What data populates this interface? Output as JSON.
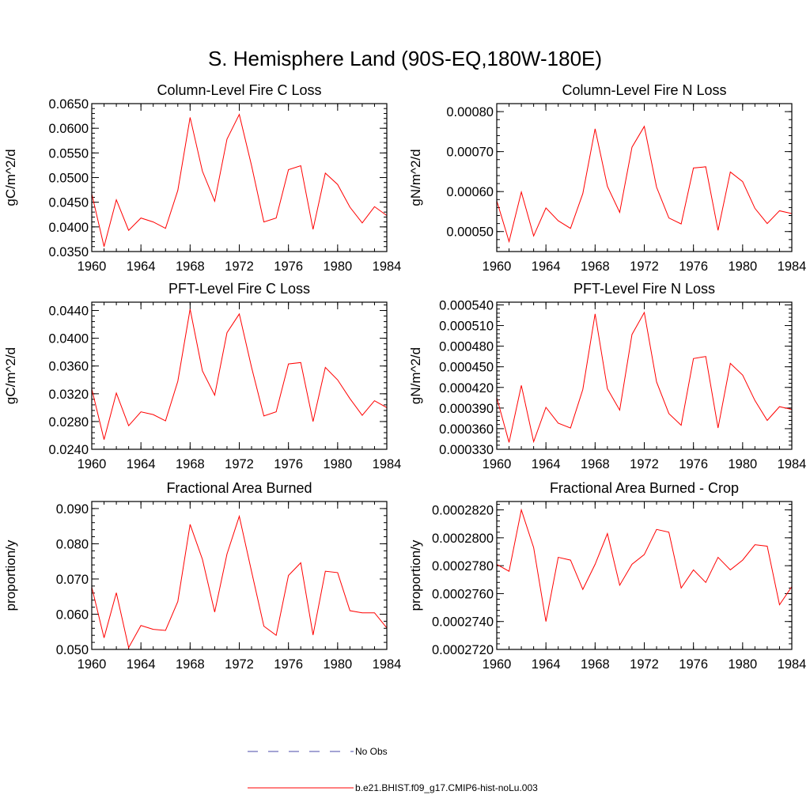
{
  "figure": {
    "title": "S. Hemisphere Land (90S-EQ,180W-180E)"
  },
  "legend": {
    "entries": [
      {
        "label": "No Obs",
        "color": "#4a4aaa",
        "style": "dashed"
      },
      {
        "label": "b.e21.BHIST.f09_g17.CMIP6-hist-noLu.003",
        "color": "#ff0000",
        "style": "solid"
      }
    ]
  },
  "chart_data": [
    {
      "type": "line",
      "title": "Column-Level Fire C Loss",
      "xlabel": "",
      "ylabel": "gC/m^2/d",
      "xlim": [
        1960,
        1984
      ],
      "ylim": [
        0.035,
        0.065
      ],
      "xticks": [
        "1960",
        "1964",
        "1968",
        "1972",
        "1976",
        "1980",
        "1984"
      ],
      "yticks": [
        "0.0350",
        "0.0400",
        "0.0450",
        "0.0500",
        "0.0550",
        "0.0600",
        "0.0650"
      ],
      "x": [
        1960,
        1961,
        1962,
        1963,
        1964,
        1965,
        1966,
        1967,
        1968,
        1969,
        1970,
        1971,
        1972,
        1973,
        1974,
        1975,
        1976,
        1977,
        1978,
        1979,
        1980,
        1981,
        1982,
        1983,
        1984
      ],
      "series": [
        {
          "color": "#ff0000",
          "values": [
            0.0467,
            0.036,
            0.0455,
            0.0393,
            0.0418,
            0.041,
            0.0397,
            0.0474,
            0.0622,
            0.0513,
            0.0452,
            0.0578,
            0.0628,
            0.0524,
            0.041,
            0.0418,
            0.0516,
            0.0524,
            0.0395,
            0.0509,
            0.0486,
            0.044,
            0.0408,
            0.0441,
            0.0423
          ]
        }
      ]
    },
    {
      "type": "line",
      "title": "Column-Level Fire N Loss",
      "xlabel": "",
      "ylabel": "gN/m^2/d",
      "xlim": [
        1960,
        1984
      ],
      "ylim": [
        0.00045,
        0.00082
      ],
      "xticks": [
        "1960",
        "1964",
        "1968",
        "1972",
        "1976",
        "1980",
        "1984"
      ],
      "yticks": [
        "0.00050",
        "0.00060",
        "0.00070",
        "0.00080"
      ],
      "x": [
        1960,
        1961,
        1962,
        1963,
        1964,
        1965,
        1966,
        1967,
        1968,
        1969,
        1970,
        1971,
        1972,
        1973,
        1974,
        1975,
        1976,
        1977,
        1978,
        1979,
        1980,
        1981,
        1982,
        1983,
        1984
      ],
      "series": [
        {
          "color": "#ff0000",
          "values": [
            0.000577,
            0.000475,
            0.000599,
            0.000489,
            0.000559,
            0.000527,
            0.000508,
            0.000595,
            0.000757,
            0.000613,
            0.000548,
            0.000711,
            0.000763,
            0.000611,
            0.000534,
            0.000519,
            0.000659,
            0.000662,
            0.000503,
            0.000649,
            0.000625,
            0.000558,
            0.00052,
            0.000552,
            0.000545
          ]
        }
      ]
    },
    {
      "type": "line",
      "title": "PFT-Level Fire C Loss",
      "xlabel": "",
      "ylabel": "gC/m^2/d",
      "xlim": [
        1960,
        1984
      ],
      "ylim": [
        0.024,
        0.0452
      ],
      "xticks": [
        "1960",
        "1964",
        "1968",
        "1972",
        "1976",
        "1980",
        "1984"
      ],
      "yticks": [
        "0.0240",
        "0.0280",
        "0.0320",
        "0.0360",
        "0.0400",
        "0.0440"
      ],
      "x": [
        1960,
        1961,
        1962,
        1963,
        1964,
        1965,
        1966,
        1967,
        1968,
        1969,
        1970,
        1971,
        1972,
        1973,
        1974,
        1975,
        1976,
        1977,
        1978,
        1979,
        1980,
        1981,
        1982,
        1983,
        1984
      ],
      "series": [
        {
          "color": "#ff0000",
          "values": [
            0.0327,
            0.0254,
            0.0321,
            0.0274,
            0.0294,
            0.029,
            0.0281,
            0.0338,
            0.0442,
            0.0353,
            0.0318,
            0.0408,
            0.0435,
            0.0358,
            0.0288,
            0.0294,
            0.0363,
            0.0365,
            0.028,
            0.0358,
            0.034,
            0.0313,
            0.0289,
            0.031,
            0.03
          ]
        }
      ]
    },
    {
      "type": "line",
      "title": "PFT-Level Fire N Loss",
      "xlabel": "",
      "ylabel": "gN/m^2/d",
      "xlim": [
        1960,
        1984
      ],
      "ylim": [
        0.00033,
        0.000544
      ],
      "xticks": [
        "1960",
        "1964",
        "1968",
        "1972",
        "1976",
        "1980",
        "1984"
      ],
      "yticks": [
        "0.000330",
        "0.000360",
        "0.000390",
        "0.000420",
        "0.000450",
        "0.000480",
        "0.000510",
        "0.000540"
      ],
      "x": [
        1960,
        1961,
        1962,
        1963,
        1964,
        1965,
        1966,
        1967,
        1968,
        1969,
        1970,
        1971,
        1972,
        1973,
        1974,
        1975,
        1976,
        1977,
        1978,
        1979,
        1980,
        1981,
        1982,
        1983,
        1984
      ],
      "series": [
        {
          "color": "#ff0000",
          "values": [
            0.000405,
            0.00034,
            0.000423,
            0.000341,
            0.000391,
            0.000368,
            0.000361,
            0.000417,
            0.000527,
            0.000418,
            0.000387,
            0.000497,
            0.000529,
            0.000428,
            0.000382,
            0.000365,
            0.000462,
            0.000465,
            0.000361,
            0.000455,
            0.000438,
            0.000401,
            0.000372,
            0.000392,
            0.000388
          ]
        }
      ]
    },
    {
      "type": "line",
      "title": "Fractional Area Burned",
      "xlabel": "",
      "ylabel": "proportion/y",
      "xlim": [
        1960,
        1984
      ],
      "ylim": [
        0.05,
        0.092
      ],
      "xticks": [
        "1960",
        "1964",
        "1968",
        "1972",
        "1976",
        "1980",
        "1984"
      ],
      "yticks": [
        "0.050",
        "0.060",
        "0.070",
        "0.080",
        "0.090"
      ],
      "x": [
        1960,
        1961,
        1962,
        1963,
        1964,
        1965,
        1966,
        1967,
        1968,
        1969,
        1970,
        1971,
        1972,
        1973,
        1974,
        1975,
        1976,
        1977,
        1978,
        1979,
        1980,
        1981,
        1982,
        1983,
        1984
      ],
      "series": [
        {
          "color": "#ff0000",
          "values": [
            0.0677,
            0.0533,
            0.0661,
            0.0505,
            0.0568,
            0.0557,
            0.0554,
            0.0636,
            0.0855,
            0.0756,
            0.0606,
            0.0771,
            0.0878,
            0.0721,
            0.0566,
            0.054,
            0.071,
            0.0746,
            0.0541,
            0.0722,
            0.0718,
            0.061,
            0.0604,
            0.0604,
            0.0561
          ]
        }
      ]
    },
    {
      "type": "line",
      "title": "Fractional Area Burned - Crop",
      "xlabel": "",
      "ylabel": "proportion/y",
      "xlim": [
        1960,
        1984
      ],
      "ylim": [
        0.000272,
        0.0002826
      ],
      "xticks": [
        "1960",
        "1964",
        "1968",
        "1972",
        "1976",
        "1980",
        "1984"
      ],
      "yticks": [
        "0.0002720",
        "0.0002740",
        "0.0002760",
        "0.0002780",
        "0.0002800",
        "0.0002820"
      ],
      "x": [
        1960,
        1961,
        1962,
        1963,
        1964,
        1965,
        1966,
        1967,
        1968,
        1969,
        1970,
        1971,
        1972,
        1973,
        1974,
        1975,
        1976,
        1977,
        1978,
        1979,
        1980,
        1981,
        1982,
        1983,
        1984
      ],
      "series": [
        {
          "color": "#ff0000",
          "values": [
            0.0002781,
            0.0002776,
            0.000282,
            0.0002793,
            0.000274,
            0.0002786,
            0.0002784,
            0.0002763,
            0.0002781,
            0.0002803,
            0.0002766,
            0.0002781,
            0.0002788,
            0.0002806,
            0.0002804,
            0.0002764,
            0.0002777,
            0.0002768,
            0.0002786,
            0.0002777,
            0.0002784,
            0.0002795,
            0.0002794,
            0.0002752,
            0.0002765
          ]
        }
      ]
    }
  ]
}
